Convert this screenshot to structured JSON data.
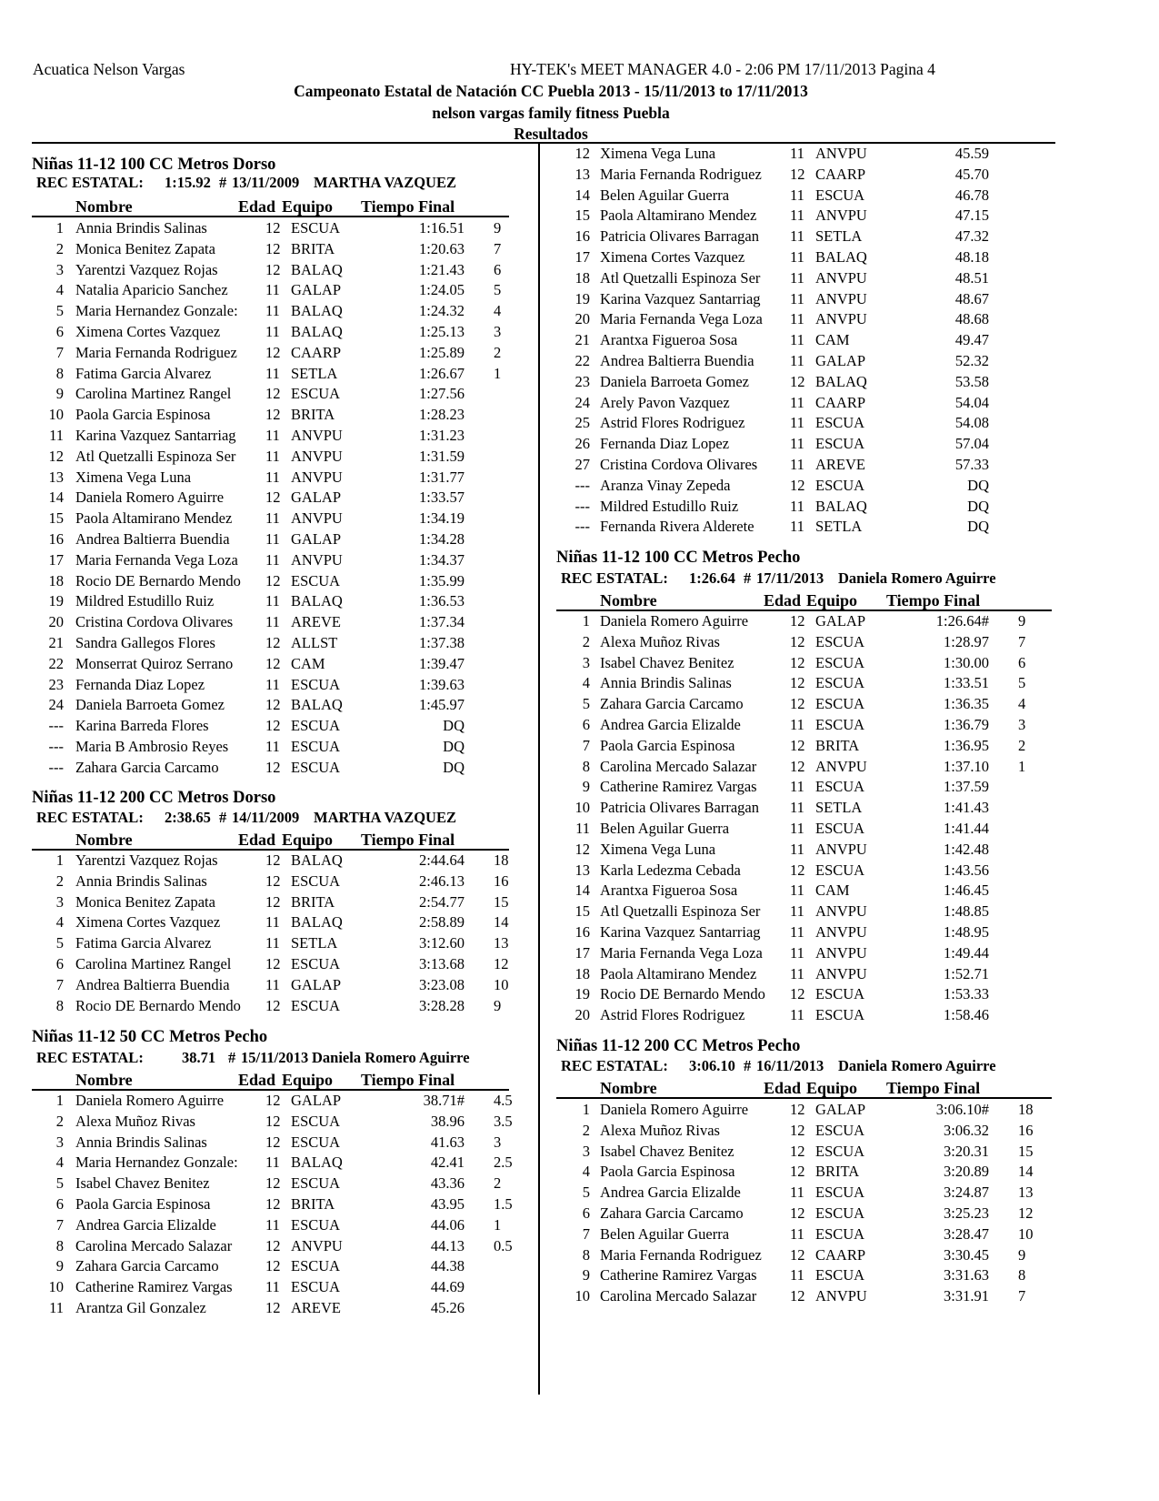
{
  "header": {
    "org": "Acuatica Nelson Vargas",
    "software": "HY-TEK's MEET MANAGER 4.0 - 2:06 PM  17/11/2013  Pagina 4",
    "meet": "Campeonato Estatal de Natación CC Puebla 2013 - 15/11/2013 to 17/11/2013",
    "venue": "nelson vargas family fitness Puebla",
    "section": "Resultados"
  },
  "columns": {
    "name": "Nombre",
    "age": "Edad",
    "team": "Equipo",
    "time": "Tiempo Final"
  },
  "events": [
    {
      "title": "Niñas 11-12 100 CC Metros Dorso",
      "rec_label": "REC ESTATAL:",
      "rec_time": "1:15.92",
      "rec_mark": "#",
      "rec_date": "13/11/2009",
      "rec_holder": "MARTHA VAZQUEZ",
      "rows": [
        [
          "1",
          "Annia Brindis Salinas",
          "12",
          "ESCUA",
          "1:16.51",
          "9"
        ],
        [
          "2",
          "Monica Benitez Zapata",
          "12",
          "BRITA",
          "1:20.63",
          "7"
        ],
        [
          "3",
          "Yarentzi Vazquez Rojas",
          "12",
          "BALAQ",
          "1:21.43",
          "6"
        ],
        [
          "4",
          "Natalia Aparicio Sanchez",
          "11",
          "GALAP",
          "1:24.05",
          "5"
        ],
        [
          "5",
          "Maria Hernandez Gonzale:",
          "11",
          "BALAQ",
          "1:24.32",
          "4"
        ],
        [
          "6",
          "Ximena Cortes Vazquez",
          "11",
          "BALAQ",
          "1:25.13",
          "3"
        ],
        [
          "7",
          "Maria Fernanda Rodriguez",
          "12",
          "CAARP",
          "1:25.89",
          "2"
        ],
        [
          "8",
          "Fatima Garcia Alvarez",
          "11",
          "SETLA",
          "1:26.67",
          "1"
        ],
        [
          "9",
          "Carolina Martinez Rangel",
          "12",
          "ESCUA",
          "1:27.56",
          ""
        ],
        [
          "10",
          "Paola Garcia Espinosa",
          "12",
          "BRITA",
          "1:28.23",
          ""
        ],
        [
          "11",
          "Karina Vazquez Santarriag",
          "11",
          "ANVPU",
          "1:31.23",
          ""
        ],
        [
          "12",
          "Atl Quetzalli Espinoza Ser",
          "11",
          "ANVPU",
          "1:31.59",
          ""
        ],
        [
          "13",
          "Ximena Vega Luna",
          "11",
          "ANVPU",
          "1:31.77",
          ""
        ],
        [
          "14",
          "Daniela Romero Aguirre",
          "12",
          "GALAP",
          "1:33.57",
          ""
        ],
        [
          "15",
          "Paola Altamirano Mendez",
          "11",
          "ANVPU",
          "1:34.19",
          ""
        ],
        [
          "16",
          "Andrea Baltierra Buendia",
          "11",
          "GALAP",
          "1:34.28",
          ""
        ],
        [
          "17",
          "Maria Fernanda Vega Loza",
          "11",
          "ANVPU",
          "1:34.37",
          ""
        ],
        [
          "18",
          "Rocio DE Bernardo Mendo",
          "12",
          "ESCUA",
          "1:35.99",
          ""
        ],
        [
          "19",
          "Mildred Estudillo Ruiz",
          "11",
          "BALAQ",
          "1:36.53",
          ""
        ],
        [
          "20",
          "Cristina Cordova Olivares",
          "11",
          "AREVE",
          "1:37.34",
          ""
        ],
        [
          "21",
          "Sandra Gallegos Flores",
          "12",
          "ALLST",
          "1:37.38",
          ""
        ],
        [
          "22",
          "Monserrat Quiroz Serrano",
          "12",
          "CAM",
          "1:39.47",
          ""
        ],
        [
          "23",
          "Fernanda Diaz Lopez",
          "11",
          "ESCUA",
          "1:39.63",
          ""
        ],
        [
          "24",
          "Daniela Barroeta Gomez",
          "12",
          "BALAQ",
          "1:45.97",
          ""
        ],
        [
          "---",
          "Karina Barreda Flores",
          "12",
          "ESCUA",
          "DQ",
          ""
        ],
        [
          "---",
          "Maria B Ambrosio Reyes",
          "11",
          "ESCUA",
          "DQ",
          ""
        ],
        [
          "---",
          "Zahara Garcia Carcamo",
          "12",
          "ESCUA",
          "DQ",
          ""
        ]
      ]
    },
    {
      "title": "Niñas 11-12 200 CC Metros Dorso",
      "rec_label": "REC ESTATAL:",
      "rec_time": "2:38.65",
      "rec_mark": "#",
      "rec_date": "14/11/2009",
      "rec_holder": "MARTHA VAZQUEZ",
      "rows": [
        [
          "1",
          "Yarentzi Vazquez Rojas",
          "12",
          "BALAQ",
          "2:44.64",
          "18"
        ],
        [
          "2",
          "Annia Brindis Salinas",
          "12",
          "ESCUA",
          "2:46.13",
          "16"
        ],
        [
          "3",
          "Monica Benitez Zapata",
          "12",
          "BRITA",
          "2:54.77",
          "15"
        ],
        [
          "4",
          "Ximena Cortes Vazquez",
          "11",
          "BALAQ",
          "2:58.89",
          "14"
        ],
        [
          "5",
          "Fatima Garcia Alvarez",
          "11",
          "SETLA",
          "3:12.60",
          "13"
        ],
        [
          "6",
          "Carolina Martinez Rangel",
          "12",
          "ESCUA",
          "3:13.68",
          "12"
        ],
        [
          "7",
          "Andrea Baltierra Buendia",
          "11",
          "GALAP",
          "3:23.08",
          "10"
        ],
        [
          "8",
          "Rocio DE Bernardo Mendo",
          "12",
          "ESCUA",
          "3:28.28",
          "9"
        ]
      ]
    },
    {
      "title": "Niñas 11-12 50 CC Metros Pecho",
      "rec_label": "REC ESTATAL:",
      "rec_time": "38.71",
      "rec_mark": "#",
      "rec_date": "15/11/2013",
      "rec_holder": "Daniela Romero Aguirre",
      "rows": [
        [
          "1",
          "Daniela Romero Aguirre",
          "12",
          "GALAP",
          "38.71#",
          "4.5"
        ],
        [
          "2",
          "Alexa Muñoz Rivas",
          "12",
          "ESCUA",
          "38.96",
          "3.5"
        ],
        [
          "3",
          "Annia Brindis Salinas",
          "12",
          "ESCUA",
          "41.63",
          "3"
        ],
        [
          "4",
          "Maria Hernandez Gonzale:",
          "11",
          "BALAQ",
          "42.41",
          "2.5"
        ],
        [
          "5",
          "Isabel Chavez Benitez",
          "12",
          "ESCUA",
          "43.36",
          "2"
        ],
        [
          "6",
          "Paola Garcia Espinosa",
          "12",
          "BRITA",
          "43.95",
          "1.5"
        ],
        [
          "7",
          "Andrea Garcia Elizalde",
          "11",
          "ESCUA",
          "44.06",
          "1"
        ],
        [
          "8",
          "Carolina Mercado Salazar",
          "12",
          "ANVPU",
          "44.13",
          "0.5"
        ],
        [
          "9",
          "Zahara Garcia Carcamo",
          "12",
          "ESCUA",
          "44.38",
          ""
        ],
        [
          "10",
          "Catherine Ramirez  Vargas",
          "11",
          "ESCUA",
          "44.69",
          ""
        ],
        [
          "11",
          "Arantza Gil Gonzalez",
          "12",
          "AREVE",
          "45.26",
          ""
        ],
        [
          "12",
          "Ximena Vega Luna",
          "11",
          "ANVPU",
          "45.59",
          ""
        ],
        [
          "13",
          "Maria Fernanda Rodriguez",
          "12",
          "CAARP",
          "45.70",
          ""
        ],
        [
          "14",
          "Belen Aguilar Guerra",
          "11",
          "ESCUA",
          "46.78",
          ""
        ],
        [
          "15",
          "Paola Altamirano Mendez",
          "11",
          "ANVPU",
          "47.15",
          ""
        ],
        [
          "16",
          "Patricia Olivares Barragan",
          "11",
          "SETLA",
          "47.32",
          ""
        ],
        [
          "17",
          "Ximena Cortes Vazquez",
          "11",
          "BALAQ",
          "48.18",
          ""
        ],
        [
          "18",
          "Atl Quetzalli Espinoza Ser",
          "11",
          "ANVPU",
          "48.51",
          ""
        ],
        [
          "19",
          "Karina Vazquez Santarriag",
          "11",
          "ANVPU",
          "48.67",
          ""
        ],
        [
          "20",
          "Maria Fernanda Vega Loza",
          "11",
          "ANVPU",
          "48.68",
          ""
        ],
        [
          "21",
          "Arantxa Figueroa Sosa",
          "11",
          "CAM",
          "49.47",
          ""
        ],
        [
          "22",
          "Andrea Baltierra Buendia",
          "11",
          "GALAP",
          "52.32",
          ""
        ],
        [
          "23",
          "Daniela Barroeta Gomez",
          "12",
          "BALAQ",
          "53.58",
          ""
        ],
        [
          "24",
          "Arely Pavon Vazquez",
          "11",
          "CAARP",
          "54.04",
          ""
        ],
        [
          "25",
          "Astrid Flores Rodriguez",
          "11",
          "ESCUA",
          "54.08",
          ""
        ],
        [
          "26",
          "Fernanda Diaz Lopez",
          "11",
          "ESCUA",
          "57.04",
          ""
        ],
        [
          "27",
          "Cristina Cordova Olivares",
          "11",
          "AREVE",
          "57.33",
          ""
        ],
        [
          "---",
          "Aranza Vinay Zepeda",
          "12",
          "ESCUA",
          "DQ",
          ""
        ],
        [
          "---",
          "Mildred Estudillo Ruiz",
          "11",
          "BALAQ",
          "DQ",
          ""
        ],
        [
          "---",
          "Fernanda Rivera Alderete",
          "11",
          "SETLA",
          "DQ",
          ""
        ]
      ]
    },
    {
      "title": "Niñas 11-12 100 CC Metros Pecho",
      "rec_label": "REC ESTATAL:",
      "rec_time": "1:26.64",
      "rec_mark": "#",
      "rec_date": "17/11/2013",
      "rec_holder": "Daniela Romero Aguirre",
      "rows": [
        [
          "1",
          "Daniela Romero Aguirre",
          "12",
          "GALAP",
          "1:26.64#",
          "9"
        ],
        [
          "2",
          "Alexa Muñoz Rivas",
          "12",
          "ESCUA",
          "1:28.97",
          "7"
        ],
        [
          "3",
          "Isabel Chavez Benitez",
          "12",
          "ESCUA",
          "1:30.00",
          "6"
        ],
        [
          "4",
          "Annia Brindis Salinas",
          "12",
          "ESCUA",
          "1:33.51",
          "5"
        ],
        [
          "5",
          "Zahara Garcia Carcamo",
          "12",
          "ESCUA",
          "1:36.35",
          "4"
        ],
        [
          "6",
          "Andrea Garcia Elizalde",
          "11",
          "ESCUA",
          "1:36.79",
          "3"
        ],
        [
          "7",
          "Paola Garcia Espinosa",
          "12",
          "BRITA",
          "1:36.95",
          "2"
        ],
        [
          "8",
          "Carolina Mercado Salazar",
          "12",
          "ANVPU",
          "1:37.10",
          "1"
        ],
        [
          "9",
          "Catherine Ramirez  Vargas",
          "11",
          "ESCUA",
          "1:37.59",
          ""
        ],
        [
          "10",
          "Patricia Olivares Barragan",
          "11",
          "SETLA",
          "1:41.43",
          ""
        ],
        [
          "11",
          "Belen Aguilar Guerra",
          "11",
          "ESCUA",
          "1:41.44",
          ""
        ],
        [
          "12",
          "Ximena Vega Luna",
          "11",
          "ANVPU",
          "1:42.48",
          ""
        ],
        [
          "13",
          "Karla Ledezma Cebada",
          "12",
          "ESCUA",
          "1:43.56",
          ""
        ],
        [
          "14",
          "Arantxa Figueroa Sosa",
          "11",
          "CAM",
          "1:46.45",
          ""
        ],
        [
          "15",
          "Atl Quetzalli Espinoza Ser",
          "11",
          "ANVPU",
          "1:48.85",
          ""
        ],
        [
          "16",
          "Karina Vazquez Santarriag",
          "11",
          "ANVPU",
          "1:48.95",
          ""
        ],
        [
          "17",
          "Maria Fernanda Vega Loza",
          "11",
          "ANVPU",
          "1:49.44",
          ""
        ],
        [
          "18",
          "Paola Altamirano Mendez",
          "11",
          "ANVPU",
          "1:52.71",
          ""
        ],
        [
          "19",
          "Rocio DE Bernardo Mendo",
          "12",
          "ESCUA",
          "1:53.33",
          ""
        ],
        [
          "20",
          "Astrid Flores Rodriguez",
          "11",
          "ESCUA",
          "1:58.46",
          ""
        ]
      ]
    },
    {
      "title": "Niñas 11-12 200 CC Metros Pecho",
      "rec_label": "REC ESTATAL:",
      "rec_time": "3:06.10",
      "rec_mark": "#",
      "rec_date": "16/11/2013",
      "rec_holder": "Daniela Romero Aguirre",
      "rows": [
        [
          "1",
          "Daniela Romero Aguirre",
          "12",
          "GALAP",
          "3:06.10#",
          "18"
        ],
        [
          "2",
          "Alexa Muñoz Rivas",
          "12",
          "ESCUA",
          "3:06.32",
          "16"
        ],
        [
          "3",
          "Isabel Chavez Benitez",
          "12",
          "ESCUA",
          "3:20.31",
          "15"
        ],
        [
          "4",
          "Paola Garcia Espinosa",
          "12",
          "BRITA",
          "3:20.89",
          "14"
        ],
        [
          "5",
          "Andrea Garcia Elizalde",
          "11",
          "ESCUA",
          "3:24.87",
          "13"
        ],
        [
          "6",
          "Zahara Garcia Carcamo",
          "12",
          "ESCUA",
          "3:25.23",
          "12"
        ],
        [
          "7",
          "Belen Aguilar Guerra",
          "11",
          "ESCUA",
          "3:28.47",
          "10"
        ],
        [
          "8",
          "Maria Fernanda Rodriguez",
          "12",
          "CAARP",
          "3:30.45",
          "9"
        ],
        [
          "9",
          "Catherine Ramirez  Vargas",
          "11",
          "ESCUA",
          "3:31.63",
          "8"
        ],
        [
          "10",
          "Carolina Mercado Salazar",
          "12",
          "ANVPU",
          "3:31.91",
          "7"
        ]
      ]
    }
  ]
}
